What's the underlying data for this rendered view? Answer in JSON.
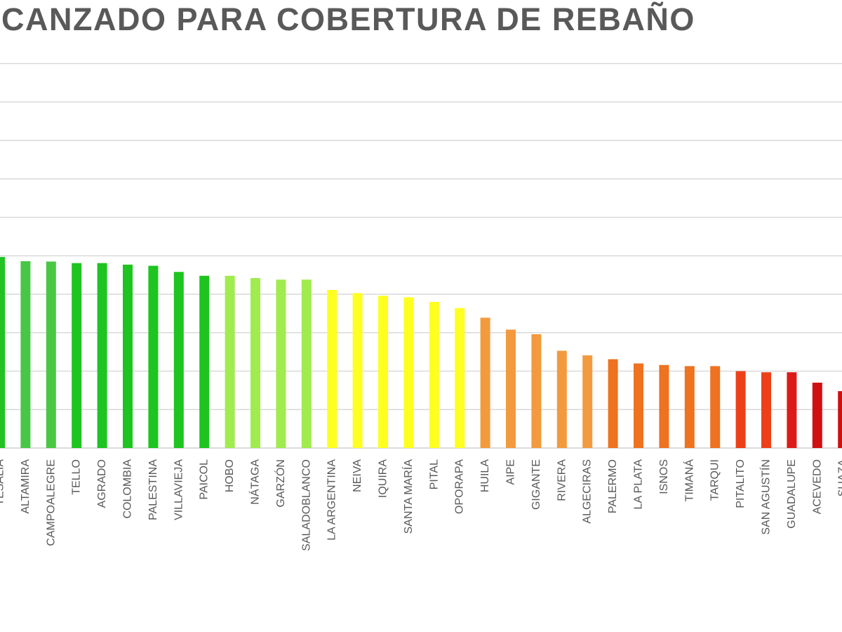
{
  "chart_data": {
    "type": "bar",
    "title": "CANZADO PARA COBERTURA DE REBAÑO",
    "xlabel": "",
    "ylabel": "",
    "ylim": [
      0,
      100
    ],
    "grid": true,
    "legend": "none",
    "categories": [
      "TESALIA",
      "ALTAMIRA",
      "CAMPOALEGRE",
      "TELLO",
      "AGRADO",
      "COLOMBIA",
      "PALESTINA",
      "VILLAVIEJA",
      "PAICOL",
      "HOBO",
      "NÁTAGA",
      "GARZÓN",
      "SALADOBLANCO",
      "LA ARGENTINA",
      "NEIVA",
      "IQUIRA",
      "SANTA MARÍA",
      "PITAL",
      "OPORAPA",
      "HUILA",
      "AIPE",
      "GIGANTE",
      "RIVERA",
      "ALGECIRAS",
      "PALERMO",
      "LA PLATA",
      "ISNOS",
      "TIMANÁ",
      "TARQUI",
      "PITALITO",
      "SAN AGUSTÍN",
      "GUADALUPE",
      "ACEVEDO",
      "SUAZA"
    ],
    "values": [
      49.7,
      48.6,
      48.5,
      48.1,
      48.1,
      47.7,
      47.4,
      45.8,
      44.8,
      44.8,
      44.2,
      43.8,
      43.8,
      41.1,
      40.3,
      39.6,
      39.2,
      38.0,
      36.4,
      33.9,
      30.8,
      29.6,
      25.3,
      24.1,
      23.1,
      22.0,
      21.6,
      21.3,
      21.3,
      20.0,
      19.7,
      19.7,
      17.0,
      14.8
    ],
    "colors": [
      "#22c323",
      "#48c745",
      "#48c745",
      "#1ec41f",
      "#1ec41f",
      "#1ec41f",
      "#1ec41f",
      "#1ec41f",
      "#1ec41f",
      "#a0eb4e",
      "#a0eb4e",
      "#a0eb4e",
      "#a0eb4e",
      "#ffff20",
      "#ffff20",
      "#ffff20",
      "#ffff20",
      "#ffff20",
      "#ffff20",
      "#f39a3e",
      "#f39a3e",
      "#f39a3e",
      "#f39a3e",
      "#f39a3e",
      "#ee7220",
      "#ee7220",
      "#ee7220",
      "#ee7220",
      "#ee7220",
      "#ee4018",
      "#ee4018",
      "#dd1a1a",
      "#d01010",
      "#d01010"
    ]
  }
}
